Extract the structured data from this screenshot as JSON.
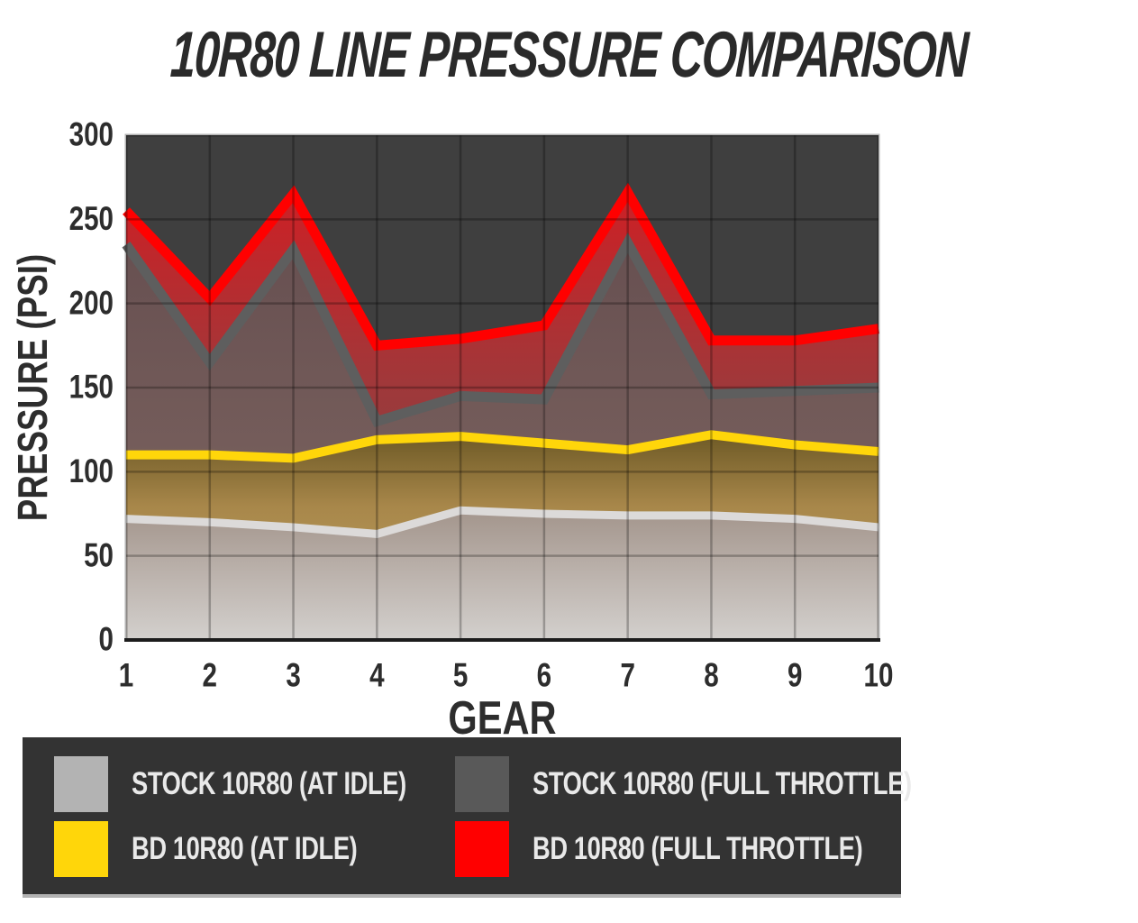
{
  "title": "10R80 LINE PRESSURE COMPARISON",
  "chart_data": {
    "type": "area",
    "x": [
      1,
      2,
      3,
      4,
      5,
      6,
      7,
      8,
      9,
      10
    ],
    "xlabel": "GEAR",
    "ylabel": "PRESSURE (PSI)",
    "ylim": [
      0,
      300
    ],
    "ytick_step": 50,
    "grid": true,
    "legend_position": "bottom",
    "plot_bg": "#3f3f3f",
    "grid_color": "rgba(0,0,0,0.26)",
    "axis_line_color": "#1c1c1c",
    "tick_label_color": "#2d2d2d",
    "series": [
      {
        "name": "BD 10R80 (FULL THROTTLE)",
        "line_color": "#ff0000",
        "line_width": 11,
        "fill_top": "#cd2025",
        "fill_mid": "#9e393b",
        "fill_mid_offset": 0.45,
        "fill_bottom": "#6e4040",
        "values": [
          255,
          203,
          265,
          175,
          179,
          187,
          266,
          178,
          178,
          185
        ]
      },
      {
        "name": "STOCK 10R80 (FULL THROTTLE)",
        "line_color": "#5e5e5e",
        "line_width": 11,
        "fill_top": "#675051",
        "fill_mid": "#745c5a",
        "fill_mid_offset": 0.5,
        "fill_bottom": "#847264",
        "values": [
          235,
          165,
          232,
          130,
          145,
          143,
          236,
          146,
          148,
          150
        ]
      },
      {
        "name": "BD 10R80 (AT IDLE)",
        "line_color": "#ffd60a",
        "line_width": 10,
        "fill_top": "#6e5a26",
        "fill_mid": "#a8874a",
        "fill_mid_offset": 0.35,
        "fill_bottom": "#c2a566",
        "values": [
          110,
          110,
          108,
          119,
          121,
          117,
          113,
          122,
          116,
          112
        ]
      },
      {
        "name": "STOCK 10R80 (AT IDLE)",
        "line_color": "#dcdad9",
        "line_width": 9,
        "fill_top": "#a3958c",
        "fill_mid": "#bcb3ad",
        "fill_mid_offset": 0.5,
        "fill_bottom": "#d3d0cd",
        "values": [
          72,
          70,
          67,
          63,
          77,
          75,
          74,
          74,
          72,
          67
        ]
      }
    ]
  },
  "legend": {
    "items": [
      {
        "label": "STOCK 10R80 (AT IDLE)",
        "color": "#b3b3b3"
      },
      {
        "label": "STOCK 10R80 (FULL THROTTLE)",
        "color": "#595959"
      },
      {
        "label": "BD 10R80 (AT IDLE)",
        "color": "#ffd60a"
      },
      {
        "label": "BD 10R80 (FULL THROTTLE)",
        "color": "#ff0000"
      }
    ]
  }
}
